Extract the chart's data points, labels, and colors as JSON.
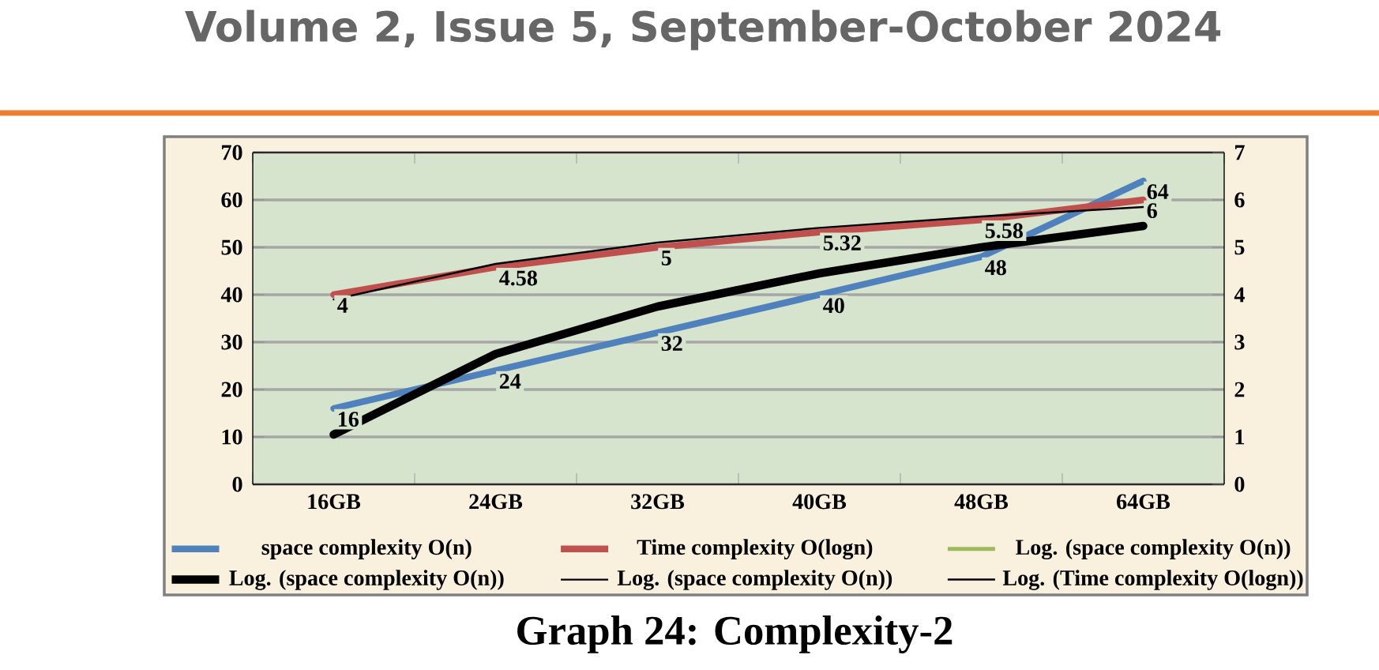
{
  "chart_data": {
    "type": "line",
    "categories": [
      "16GB",
      "24GB",
      "32GB",
      "40GB",
      "48GB",
      "64GB"
    ],
    "series": [
      {
        "name": "space complexity O(n)",
        "color": "#4f81bd",
        "values": [
          16,
          24,
          32,
          40,
          48,
          64
        ],
        "value_labels": [
          "16",
          "24",
          "32",
          "40",
          "48",
          "64"
        ]
      },
      {
        "name": "Time complexity O(logn)",
        "color": "#c0504d",
        "axis": "y2",
        "values": [
          4,
          4.58,
          5,
          5.32,
          5.58,
          6
        ],
        "value_labels": [
          "4",
          "4.58",
          "5",
          "5.32",
          "5.58",
          "6"
        ]
      },
      {
        "name": "Log. (space complexity O(n))",
        "color": "#9bbb59",
        "values": [
          null,
          null,
          null,
          null,
          null,
          null
        ]
      },
      {
        "name": "Log. (space complexity O(n))",
        "color": "#000000",
        "values": [
          10.5,
          27.5,
          37.5,
          44.5,
          50,
          54.5
        ]
      },
      {
        "name": "Log. (space complexity O(n))",
        "color": "#000000",
        "values": [
          null,
          null,
          null,
          null,
          null,
          null
        ]
      },
      {
        "name": "Log. (Time complexity O(logn))",
        "color": "#000000",
        "axis": "y2",
        "values": [
          3.9,
          4.65,
          5.1,
          5.41,
          5.65,
          5.85
        ]
      }
    ],
    "ylim": [
      0,
      70
    ],
    "yticks": [
      0,
      10,
      20,
      30,
      40,
      50,
      60,
      70
    ],
    "y2lim": [
      0,
      7
    ],
    "y2ticks": [
      0,
      1,
      2,
      3,
      4,
      5,
      6,
      7
    ],
    "grid": "y",
    "legend": "bottom",
    "annotations": [
      "Volume 2, Issue 5, September-October 2024",
      "Graph 24: Complexity-2"
    ]
  }
}
